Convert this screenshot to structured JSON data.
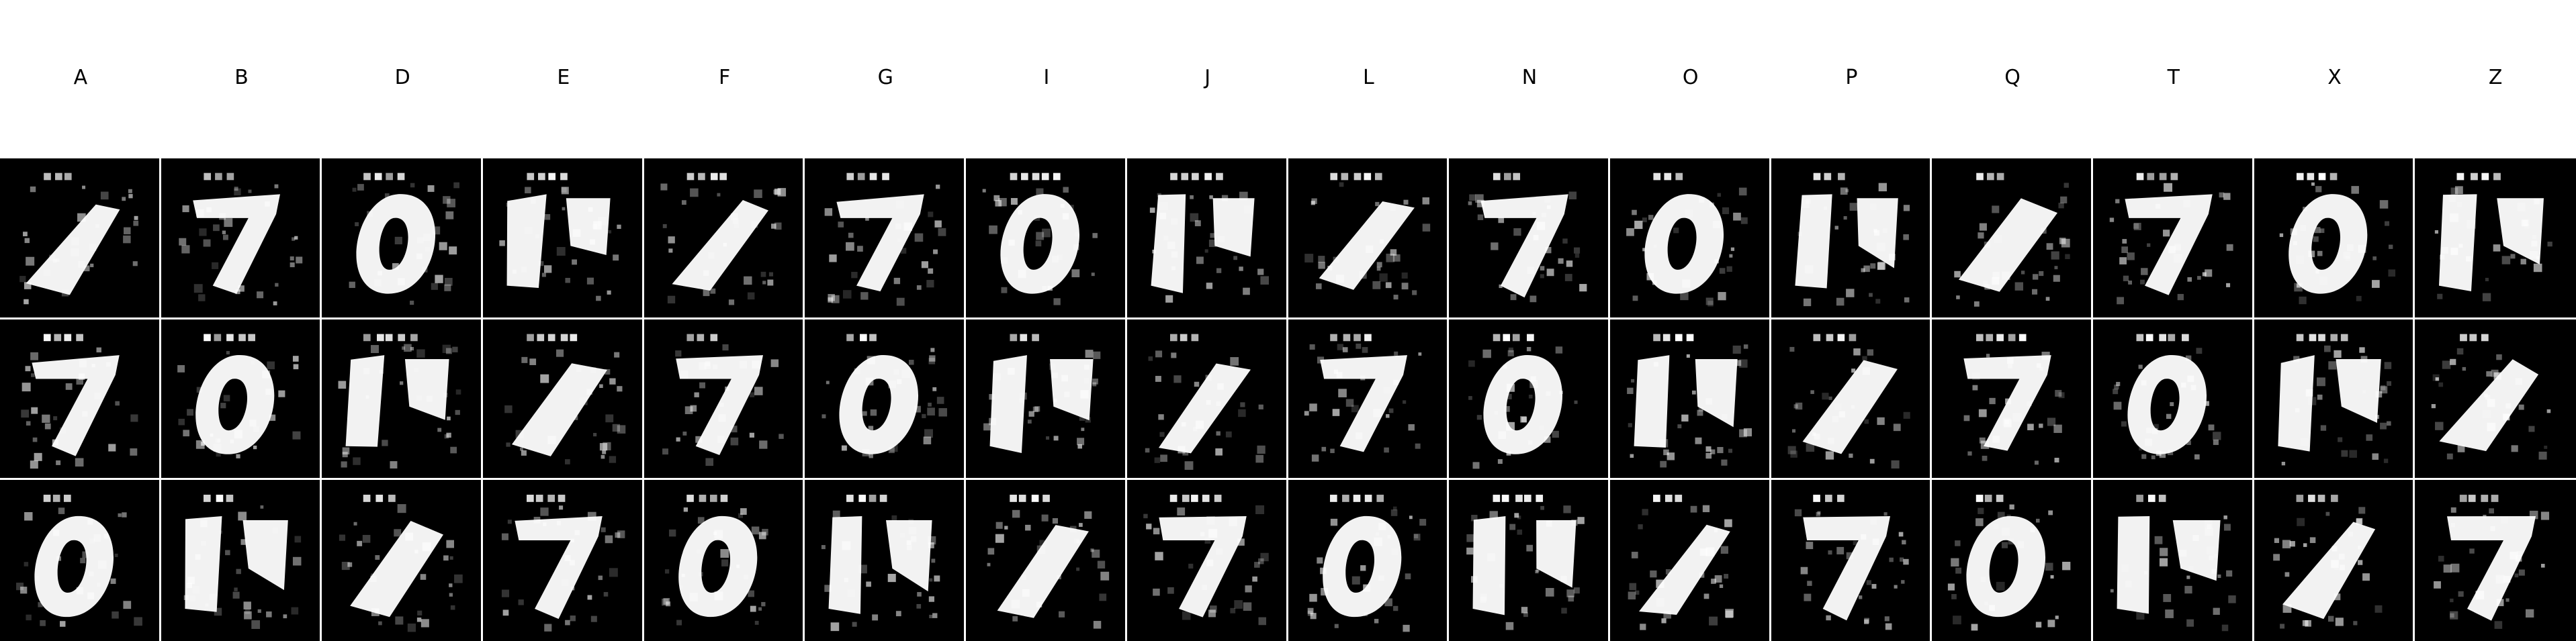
{
  "column_labels": [
    "A",
    "B",
    "D",
    "E",
    "F",
    "G",
    "I",
    "J",
    "L",
    "N",
    "O",
    "P",
    "Q",
    "T",
    "X",
    "Z"
  ],
  "rows": 3,
  "tile_background": "#000000",
  "glyph_color": "#ffffff",
  "separator_color": "#ffffff"
}
